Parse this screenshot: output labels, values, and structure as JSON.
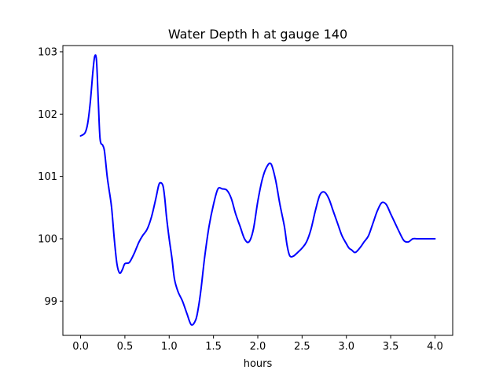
{
  "chart_data": {
    "type": "line",
    "title": "Water Depth h at gauge 140",
    "xlabel": "hours",
    "ylabel": "",
    "xlim": [
      -0.2,
      4.2
    ],
    "ylim": [
      98.45,
      103.1
    ],
    "xticks": [
      0.0,
      0.5,
      1.0,
      1.5,
      2.0,
      2.5,
      3.0,
      3.5,
      4.0
    ],
    "xtick_labels": [
      "0.0",
      "0.5",
      "1.0",
      "1.5",
      "2.0",
      "2.5",
      "3.0",
      "3.5",
      "4.0"
    ],
    "yticks": [
      99,
      100,
      101,
      102,
      103
    ],
    "ytick_labels": [
      "99",
      "100",
      "101",
      "102",
      "103"
    ],
    "grid": false,
    "series": [
      {
        "color": "#0000ff",
        "x": [
          0.0,
          0.05,
          0.08,
          0.11,
          0.14,
          0.16,
          0.18,
          0.2,
          0.22,
          0.25,
          0.27,
          0.3,
          0.32,
          0.35,
          0.38,
          0.41,
          0.44,
          0.47,
          0.5,
          0.55,
          0.6,
          0.63,
          0.66,
          0.7,
          0.75,
          0.8,
          0.85,
          0.88,
          0.9,
          0.93,
          0.95,
          0.97,
          1.0,
          1.03,
          1.06,
          1.1,
          1.15,
          1.2,
          1.25,
          1.3,
          1.33,
          1.36,
          1.4,
          1.45,
          1.5,
          1.55,
          1.6,
          1.65,
          1.7,
          1.75,
          1.8,
          1.85,
          1.9,
          1.95,
          2.0,
          2.05,
          2.1,
          2.15,
          2.2,
          2.25,
          2.3,
          2.33,
          2.36,
          2.4,
          2.45,
          2.5,
          2.55,
          2.6,
          2.65,
          2.7,
          2.75,
          2.8,
          2.85,
          2.9,
          2.95,
          3.0,
          3.03,
          3.06,
          3.1,
          3.15,
          3.2,
          3.25,
          3.3,
          3.35,
          3.4,
          3.45,
          3.5,
          3.55,
          3.6,
          3.65,
          3.7,
          3.75,
          3.8,
          3.85,
          3.9,
          3.95,
          4.0
        ],
        "y": [
          101.65,
          101.7,
          101.85,
          102.2,
          102.7,
          102.93,
          102.85,
          102.2,
          101.6,
          101.5,
          101.4,
          101.0,
          100.8,
          100.5,
          100.0,
          99.6,
          99.45,
          99.5,
          99.6,
          99.62,
          99.75,
          99.85,
          99.95,
          100.05,
          100.15,
          100.35,
          100.65,
          100.85,
          100.9,
          100.85,
          100.65,
          100.35,
          100.0,
          99.7,
          99.35,
          99.15,
          99.0,
          98.8,
          98.62,
          98.7,
          98.9,
          99.2,
          99.7,
          100.2,
          100.55,
          100.8,
          100.8,
          100.78,
          100.65,
          100.4,
          100.2,
          100.0,
          99.95,
          100.15,
          100.6,
          100.95,
          101.15,
          101.2,
          100.95,
          100.55,
          100.2,
          99.9,
          99.73,
          99.72,
          99.78,
          99.85,
          99.95,
          100.15,
          100.45,
          100.7,
          100.75,
          100.65,
          100.45,
          100.25,
          100.05,
          99.92,
          99.85,
          99.82,
          99.78,
          99.85,
          99.95,
          100.05,
          100.25,
          100.45,
          100.58,
          100.55,
          100.4,
          100.25,
          100.1,
          99.97,
          99.95,
          100.0,
          100.0,
          100.0,
          100.0,
          100.0,
          100.0
        ]
      }
    ]
  }
}
